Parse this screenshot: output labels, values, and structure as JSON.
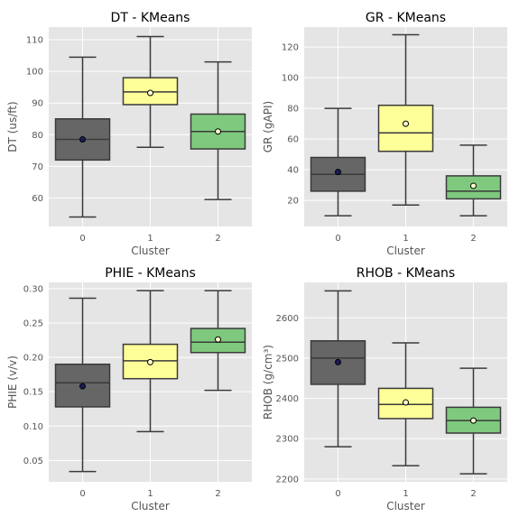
{
  "chart_data": [
    {
      "type": "box",
      "title": "DT - KMeans",
      "xlabel": "Cluster",
      "ylabel": "DT (us/ft)",
      "categories": [
        "0",
        "1",
        "2"
      ],
      "yticks": [
        60,
        70,
        80,
        90,
        100,
        110
      ],
      "ylim": [
        51,
        114
      ],
      "boxes": [
        {
          "category": "0",
          "whisker_low": 54,
          "q1": 72,
          "median": 78.5,
          "q3": 85,
          "whisker_high": 104.5,
          "mean": 78.5
        },
        {
          "category": "1",
          "whisker_low": 76,
          "q1": 89.5,
          "median": 93.5,
          "q3": 98,
          "whisker_high": 111,
          "mean": 93.2
        },
        {
          "category": "2",
          "whisker_low": 59.5,
          "q1": 75.5,
          "median": 81,
          "q3": 86.5,
          "whisker_high": 103,
          "mean": 81
        }
      ]
    },
    {
      "type": "box",
      "title": "GR - KMeans",
      "xlabel": "Cluster",
      "ylabel": "GR (gAPI)",
      "categories": [
        "0",
        "1",
        "2"
      ],
      "yticks": [
        20,
        40,
        60,
        80,
        100,
        120
      ],
      "ylim": [
        3,
        133
      ],
      "boxes": [
        {
          "category": "0",
          "whisker_low": 10,
          "q1": 26,
          "median": 37,
          "q3": 48,
          "whisker_high": 80,
          "mean": 38.5
        },
        {
          "category": "1",
          "whisker_low": 17,
          "q1": 52,
          "median": 64,
          "q3": 82,
          "whisker_high": 128,
          "mean": 70
        },
        {
          "category": "2",
          "whisker_low": 10,
          "q1": 21,
          "median": 26,
          "q3": 36,
          "whisker_high": 56,
          "mean": 29.5
        }
      ]
    },
    {
      "type": "box",
      "title": "PHIE - KMeans",
      "xlabel": "Cluster",
      "ylabel": "PHIE (v/v)",
      "categories": [
        "0",
        "1",
        "2"
      ],
      "yticks": [
        0.05,
        0.1,
        0.15,
        0.2,
        0.25,
        0.3
      ],
      "ylim": [
        0.019,
        0.309
      ],
      "boxes": [
        {
          "category": "0",
          "whisker_low": 0.034,
          "q1": 0.128,
          "median": 0.163,
          "q3": 0.19,
          "whisker_high": 0.286,
          "mean": 0.158
        },
        {
          "category": "1",
          "whisker_low": 0.092,
          "q1": 0.169,
          "median": 0.195,
          "q3": 0.219,
          "whisker_high": 0.297,
          "mean": 0.193
        },
        {
          "category": "2",
          "whisker_low": 0.152,
          "q1": 0.207,
          "median": 0.222,
          "q3": 0.242,
          "whisker_high": 0.297,
          "mean": 0.226
        }
      ]
    },
    {
      "type": "box",
      "title": "RHOB - KMeans",
      "xlabel": "Cluster",
      "ylabel": "RHOB (g/cm³)",
      "categories": [
        "0",
        "1",
        "2"
      ],
      "yticks": [
        2200,
        2300,
        2400,
        2500,
        2600
      ],
      "ylim": [
        2193,
        2688
      ],
      "boxes": [
        {
          "category": "0",
          "whisker_low": 2280,
          "q1": 2435,
          "median": 2500,
          "q3": 2543,
          "whisker_high": 2667,
          "mean": 2490
        },
        {
          "category": "1",
          "whisker_low": 2233,
          "q1": 2350,
          "median": 2385,
          "q3": 2425,
          "whisker_high": 2538,
          "mean": 2390
        },
        {
          "category": "2",
          "whisker_low": 2213,
          "q1": 2314,
          "median": 2345,
          "q3": 2378,
          "whisker_high": 2475,
          "mean": 2345
        }
      ]
    }
  ],
  "colors": {
    "panel_bg": "#e5e5e5",
    "grid": "#ffffff",
    "line": "#3a3a3a",
    "box_fills": [
      "#666666",
      "#ffff99",
      "#7fc97f"
    ],
    "mean_fills": [
      "#1c1c5c",
      "#ffffcc",
      "#ffffcc"
    ]
  }
}
